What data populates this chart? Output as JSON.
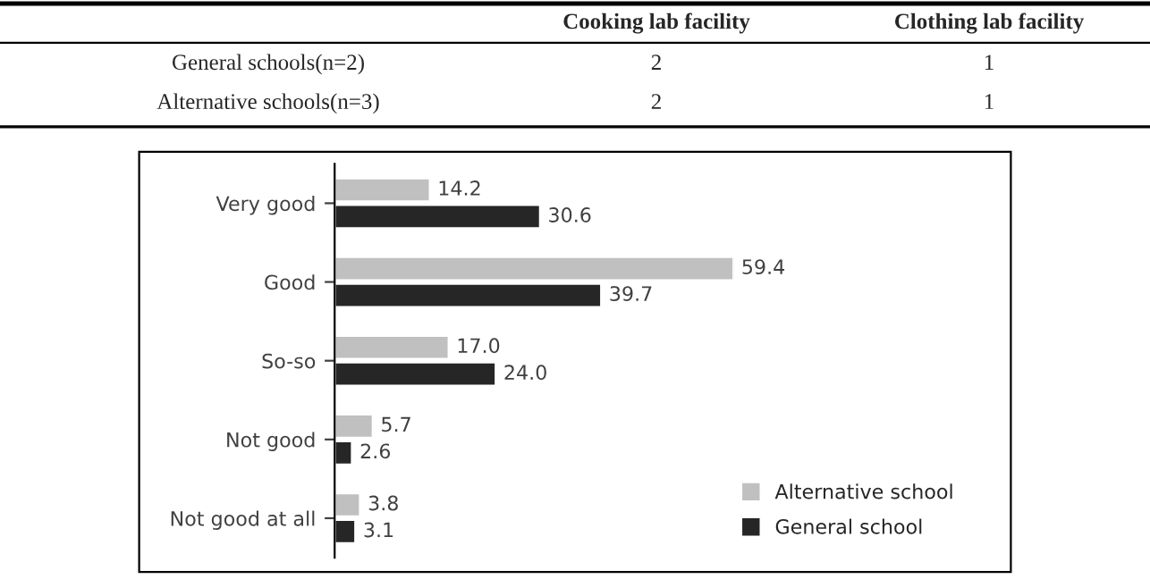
{
  "chart_data": [
    {
      "type": "other",
      "categories": [
        "Cooking lab facility",
        "Clothing lab facility"
      ],
      "y_categories": [
        "General schools(n=2)",
        "Alternative schools(n=3)"
      ],
      "cell_labels": [
        [
          "2",
          "1"
        ],
        [
          "2",
          "1"
        ]
      ]
    },
    {
      "type": "bar",
      "orientation": "horizontal",
      "categories": [
        "Very good",
        "Good",
        "So-so",
        "Not good",
        "Not good at all"
      ],
      "series": [
        {
          "name": "Alternative school",
          "color": "#c0c0c0",
          "values": [
            14.2,
            59.4,
            17.0,
            5.7,
            3.8
          ],
          "value_labels": [
            "14.2",
            "59.4",
            "17.0",
            "5.7",
            "3.8"
          ]
        },
        {
          "name": "General school",
          "color": "#262626",
          "values": [
            30.6,
            39.7,
            24.0,
            2.6,
            3.1
          ],
          "value_labels": [
            "30.6",
            "39.7",
            "24.0",
            "2.6",
            "3.1"
          ]
        }
      ],
      "tick_labels": "y",
      "grid": false,
      "legend": "bottom right"
    }
  ]
}
